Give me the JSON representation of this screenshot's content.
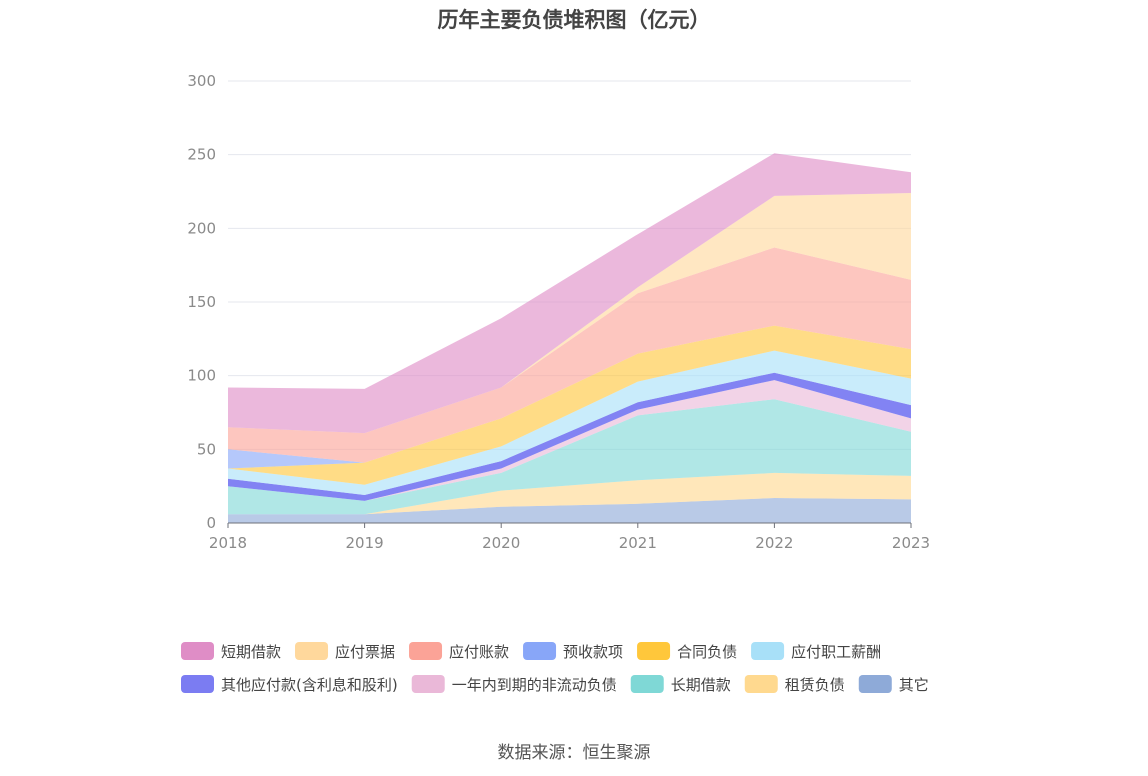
{
  "chart_data": {
    "type": "area",
    "stacked": true,
    "title": "历年主要负债堆积图（亿元）",
    "source": "数据来源：恒生聚源",
    "categories": [
      "2018",
      "2019",
      "2020",
      "2021",
      "2022",
      "2023"
    ],
    "ylim": [
      0,
      300
    ],
    "yticks": [
      0,
      50,
      100,
      150,
      200,
      250,
      300
    ],
    "grid": true,
    "legend_position": "bottom",
    "series": [
      {
        "name": "其它",
        "color": "#8eaad8",
        "values": [
          6,
          6,
          11,
          13,
          17,
          16
        ]
      },
      {
        "name": "租赁负债",
        "color": "#ffd98f",
        "values": [
          0,
          0,
          11,
          16,
          17,
          16
        ]
      },
      {
        "name": "长期借款",
        "color": "#7fd8d6",
        "values": [
          19,
          9,
          12,
          44,
          50,
          30
        ]
      },
      {
        "name": "一年内到期的非流动负债",
        "color": "#eab8d8",
        "values": [
          0,
          0,
          3,
          4,
          13,
          9
        ]
      },
      {
        "name": "其他应付款(含利息和股利)",
        "color": "#7b7cf2",
        "values": [
          5,
          4,
          5,
          5,
          5,
          9
        ]
      },
      {
        "name": "应付职工薪酬",
        "color": "#a8e0f8",
        "values": [
          7,
          7,
          10,
          14,
          15,
          18
        ]
      },
      {
        "name": "合同负债",
        "color": "#ffc73b",
        "values": [
          0,
          15,
          19,
          19,
          17,
          20
        ]
      },
      {
        "name": "预收款项",
        "color": "#88a6f8",
        "values": [
          13,
          0,
          0,
          0,
          0,
          0
        ]
      },
      {
        "name": "应付账款",
        "color": "#fba397",
        "values": [
          15,
          20,
          21,
          41,
          53,
          47
        ]
      },
      {
        "name": "应付票据",
        "color": "#ffd89c",
        "values": [
          0,
          0,
          0,
          4,
          35,
          59
        ]
      },
      {
        "name": "短期借款",
        "color": "#df8dc6",
        "values": [
          27,
          30,
          47,
          36,
          29,
          14
        ]
      }
    ],
    "legend_order": [
      "短期借款",
      "应付票据",
      "应付账款",
      "预收款项",
      "合同负债",
      "应付职工薪酬",
      "其他应付款(含利息和股利)",
      "一年内到期的非流动负债",
      "长期借款",
      "租赁负债",
      "其它"
    ]
  }
}
